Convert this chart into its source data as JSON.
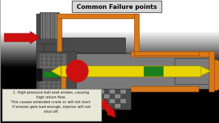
{
  "title": "Common Failure points",
  "bg_gradient_top": "#c8c8c8",
  "bg_gradient_bot": "#888888",
  "bg_color": "#a0a0a0",
  "title_box_color": "#d8d8d8",
  "title_text_color": "#000000",
  "gray_dark": "#4a4a4a",
  "gray_body": "#686868",
  "gray_mid": "#7a7a7a",
  "gray_light": "#9a9a9a",
  "orange": "#d87818",
  "yellow": "#e8d400",
  "green": "#1a8020",
  "red": "#cc1010",
  "black": "#111111",
  "white": "#ffffff",
  "annotation_text": "1. High-pressure ball seat erodes, causing\nhigh return flow.\nThis causes extended crank or will not start.\nIf erosion gets bad enough, injector will not\nshut off.",
  "annotation_bg": "#e8e8d8",
  "annotation_border": "#888888",
  "thread_color": "#585858",
  "thread_line": "#888888"
}
